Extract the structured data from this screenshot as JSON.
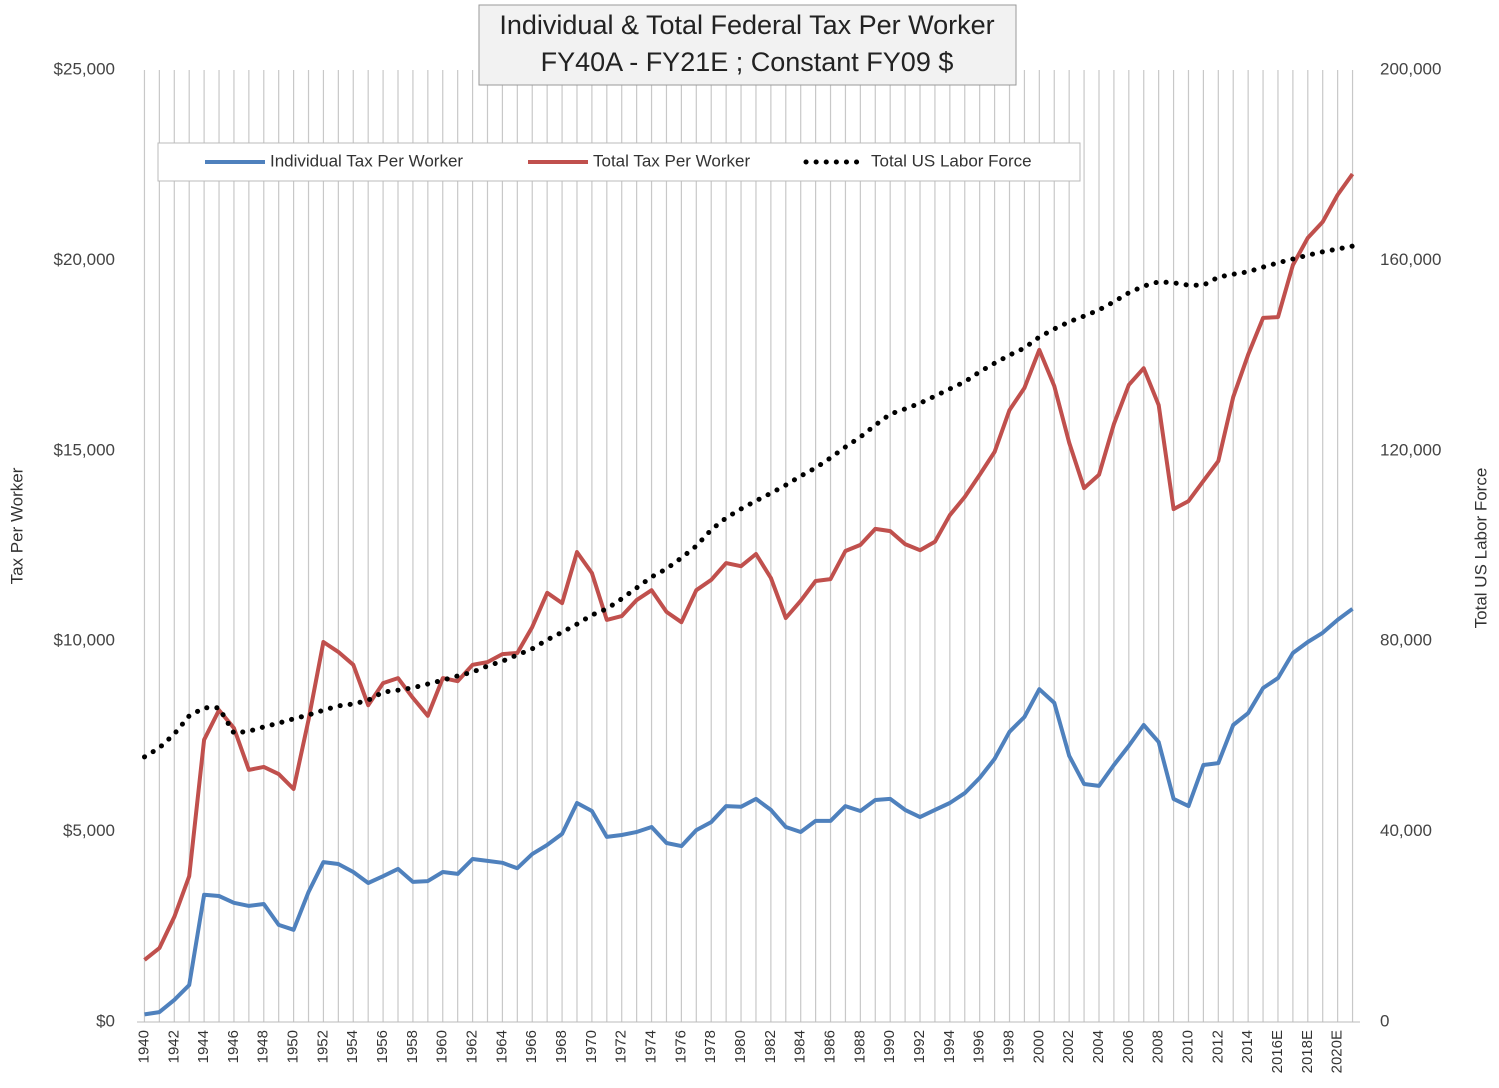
{
  "chart_data": {
    "type": "line",
    "title": "Individual & Total Federal Tax Per Worker",
    "subtitle": "FY40A - FY21E ; Constant FY09 $",
    "y_label": "Tax Per Worker",
    "y2_label": "Total US Labor Force",
    "grid": "x",
    "legend": "top",
    "categories": [
      "1940",
      null,
      "1942",
      null,
      "1944",
      null,
      "1946",
      null,
      "1948",
      null,
      "1950",
      null,
      "1952",
      null,
      "1954",
      null,
      "1956",
      null,
      "1958",
      null,
      "1960",
      null,
      "1962",
      null,
      "1964",
      null,
      "1966",
      null,
      "1968",
      null,
      "1970",
      null,
      "1972",
      null,
      "1974",
      null,
      "1976",
      null,
      "1978",
      null,
      "1980",
      null,
      "1982",
      null,
      "1984",
      null,
      "1986",
      null,
      "1988",
      null,
      "1990",
      null,
      "1992",
      null,
      "1994",
      null,
      "1996",
      null,
      "1998",
      null,
      "2000",
      null,
      "2002",
      null,
      "2004",
      null,
      "2006",
      null,
      "2008",
      null,
      "2010",
      null,
      "2012",
      null,
      "2014",
      null,
      "2016E",
      null,
      "2018E",
      null,
      "2020E",
      null
    ],
    "ylim": [
      0,
      25000
    ],
    "yticks": [
      {
        "value": 0,
        "label": "$0"
      },
      {
        "value": 5000,
        "label": "$5,000"
      },
      {
        "value": 10000,
        "label": "$10,000"
      },
      {
        "value": 15000,
        "label": "$15,000"
      },
      {
        "value": 20000,
        "label": "$20,000"
      },
      {
        "value": 25000,
        "label": "$25,000"
      }
    ],
    "y2lim": [
      0,
      200000
    ],
    "y2ticks": [
      0,
      {
        "value": 40000,
        "label": "40,000"
      },
      {
        "value": 80000,
        "label": "80,000"
      },
      {
        "value": 120000,
        "label": "120,000"
      },
      {
        "value": 160000,
        "label": "160,000"
      },
      {
        "value": 200000,
        "label": "200,000"
      }
    ],
    "series": [
      {
        "name": "Individual Tax Per Worker",
        "color": "#4f81bd",
        "style": "solid",
        "values": [
          200,
          260,
          580,
          970,
          3340,
          3310,
          3130,
          3050,
          3100,
          2550,
          2420,
          3410,
          4200,
          4150,
          3940,
          3650,
          3830,
          4020,
          3680,
          3700,
          3940,
          3890,
          4280,
          4230,
          4180,
          4040,
          4410,
          4650,
          4940,
          5750,
          5540,
          4860,
          4910,
          4990,
          5120,
          4700,
          4620,
          5040,
          5250,
          5670,
          5650,
          5860,
          5570,
          5120,
          4990,
          5280,
          5280,
          5670,
          5540,
          5830,
          5860,
          5570,
          5380,
          5570,
          5750,
          6010,
          6410,
          6910,
          7620,
          8010,
          8740,
          8380,
          6990,
          6250,
          6200,
          6750,
          7250,
          7800,
          7350,
          5860,
          5670,
          6750,
          6800,
          7800,
          8110,
          8770,
          9030,
          9690,
          9980,
          10220,
          10560,
          10850
        ]
      },
      {
        "name": "Total Tax Per Worker",
        "color": "#c0504d",
        "style": "solid",
        "values": [
          1630,
          1940,
          2760,
          3830,
          7410,
          8190,
          7720,
          6620,
          6700,
          6510,
          6120,
          7930,
          9980,
          9720,
          9380,
          8320,
          8900,
          9030,
          8510,
          8040,
          9030,
          8950,
          9380,
          9450,
          9660,
          9690,
          10370,
          11270,
          11000,
          12340,
          11790,
          10560,
          10660,
          11080,
          11340,
          10770,
          10500,
          11340,
          11610,
          12050,
          11970,
          12290,
          11660,
          10610,
          11060,
          11580,
          11630,
          12370,
          12530,
          12950,
          12890,
          12550,
          12390,
          12610,
          13310,
          13790,
          14370,
          14970,
          16070,
          16650,
          17650,
          16700,
          15210,
          14020,
          14370,
          15700,
          16730,
          17170,
          16200,
          13470,
          13680,
          14210,
          14730,
          16410,
          17520,
          18490,
          18510,
          19880,
          20590,
          21010,
          21720,
          22270
        ]
      },
      {
        "name": "Total US Labor Force",
        "color": "#000000",
        "style": "dotted",
        "axis": "y2",
        "values": [
          55700,
          57600,
          60500,
          64300,
          66000,
          66000,
          60700,
          61100,
          62000,
          62800,
          63700,
          64500,
          65500,
          66400,
          66800,
          67600,
          69300,
          69700,
          70200,
          71000,
          71800,
          72700,
          73500,
          74800,
          75800,
          77100,
          78400,
          80300,
          81900,
          83600,
          85500,
          86800,
          88900,
          91200,
          93500,
          95200,
          97500,
          100000,
          103400,
          105900,
          107800,
          109500,
          111100,
          112800,
          114700,
          116400,
          118500,
          120800,
          122900,
          125400,
          127700,
          128800,
          130000,
          131500,
          133000,
          134500,
          136600,
          138400,
          140100,
          141600,
          143900,
          145600,
          147100,
          148300,
          149600,
          151300,
          153200,
          154600,
          155500,
          155300,
          154800,
          154800,
          156500,
          157100,
          157600,
          158600,
          159500,
          160300,
          161100,
          161800,
          162400,
          163000
        ]
      }
    ]
  }
}
